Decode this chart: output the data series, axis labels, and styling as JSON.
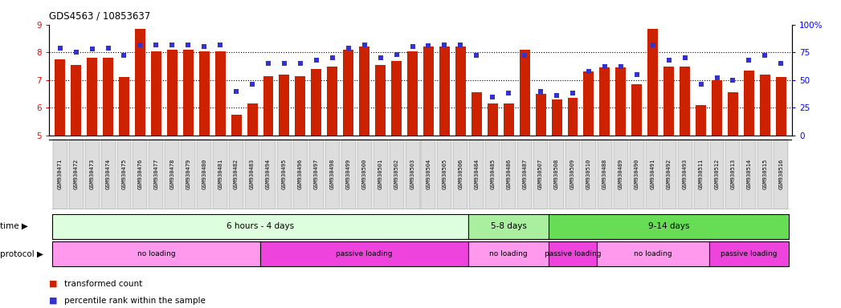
{
  "title": "GDS4563 / 10853637",
  "bar_color": "#CC2200",
  "dot_color": "#3333CC",
  "ylim": [
    5,
    9
  ],
  "yticks": [
    5,
    6,
    7,
    8,
    9
  ],
  "y2lim": [
    0,
    100
  ],
  "y2ticks": [
    0,
    25,
    50,
    75,
    100
  ],
  "samples": [
    "GSM930471",
    "GSM930472",
    "GSM930473",
    "GSM930474",
    "GSM930475",
    "GSM930476",
    "GSM930477",
    "GSM930478",
    "GSM930479",
    "GSM930480",
    "GSM930481",
    "GSM930482",
    "GSM930483",
    "GSM930494",
    "GSM930495",
    "GSM930496",
    "GSM930497",
    "GSM930498",
    "GSM930499",
    "GSM930500",
    "GSM930501",
    "GSM930502",
    "GSM930503",
    "GSM930504",
    "GSM930505",
    "GSM930506",
    "GSM930484",
    "GSM930485",
    "GSM930486",
    "GSM930487",
    "GSM930507",
    "GSM930508",
    "GSM930509",
    "GSM930510",
    "GSM930488",
    "GSM930489",
    "GSM930490",
    "GSM930491",
    "GSM930492",
    "GSM930493",
    "GSM930511",
    "GSM930512",
    "GSM930513",
    "GSM930514",
    "GSM930515",
    "GSM930516"
  ],
  "bar_values": [
    7.75,
    7.55,
    7.8,
    7.8,
    7.1,
    8.85,
    8.05,
    8.1,
    8.1,
    8.05,
    8.05,
    5.75,
    6.15,
    7.15,
    7.2,
    7.15,
    7.4,
    7.5,
    8.1,
    8.2,
    7.55,
    7.7,
    8.05,
    8.2,
    8.2,
    8.2,
    6.55,
    6.15,
    6.15,
    8.1,
    6.5,
    6.3,
    6.35,
    7.3,
    7.45,
    7.45,
    6.85,
    8.85,
    7.5,
    7.5,
    6.1,
    7.0,
    6.55,
    7.35,
    7.2,
    7.1
  ],
  "dot_values": [
    79,
    75,
    78,
    79,
    72,
    82,
    82,
    82,
    82,
    80,
    82,
    40,
    46,
    65,
    65,
    65,
    68,
    70,
    79,
    82,
    70,
    73,
    80,
    81,
    82,
    82,
    72,
    35,
    38,
    72,
    40,
    36,
    38,
    58,
    62,
    62,
    55,
    82,
    68,
    70,
    46,
    52,
    50,
    68,
    72,
    65
  ],
  "time_groups": [
    {
      "label": "6 hours - 4 days",
      "start": 0,
      "end": 26,
      "color": "#DDFFDD"
    },
    {
      "label": "5-8 days",
      "start": 26,
      "end": 31,
      "color": "#AAEEA0"
    },
    {
      "label": "9-14 days",
      "start": 31,
      "end": 46,
      "color": "#66DD55"
    }
  ],
  "protocol_groups": [
    {
      "label": "no loading",
      "start": 0,
      "end": 13,
      "color": "#FF99EE"
    },
    {
      "label": "passive loading",
      "start": 13,
      "end": 26,
      "color": "#EE44DD"
    },
    {
      "label": "no loading",
      "start": 26,
      "end": 31,
      "color": "#FF99EE"
    },
    {
      "label": "passive loading",
      "start": 31,
      "end": 34,
      "color": "#EE44DD"
    },
    {
      "label": "no loading",
      "start": 34,
      "end": 41,
      "color": "#FF99EE"
    },
    {
      "label": "passive loading",
      "start": 41,
      "end": 46,
      "color": "#EE44DD"
    }
  ],
  "legend_bar_label": "transformed count",
  "legend_dot_label": "percentile rank within the sample",
  "bg_color": "#FFFFFF",
  "tick_bg_color": "#DDDDDD"
}
